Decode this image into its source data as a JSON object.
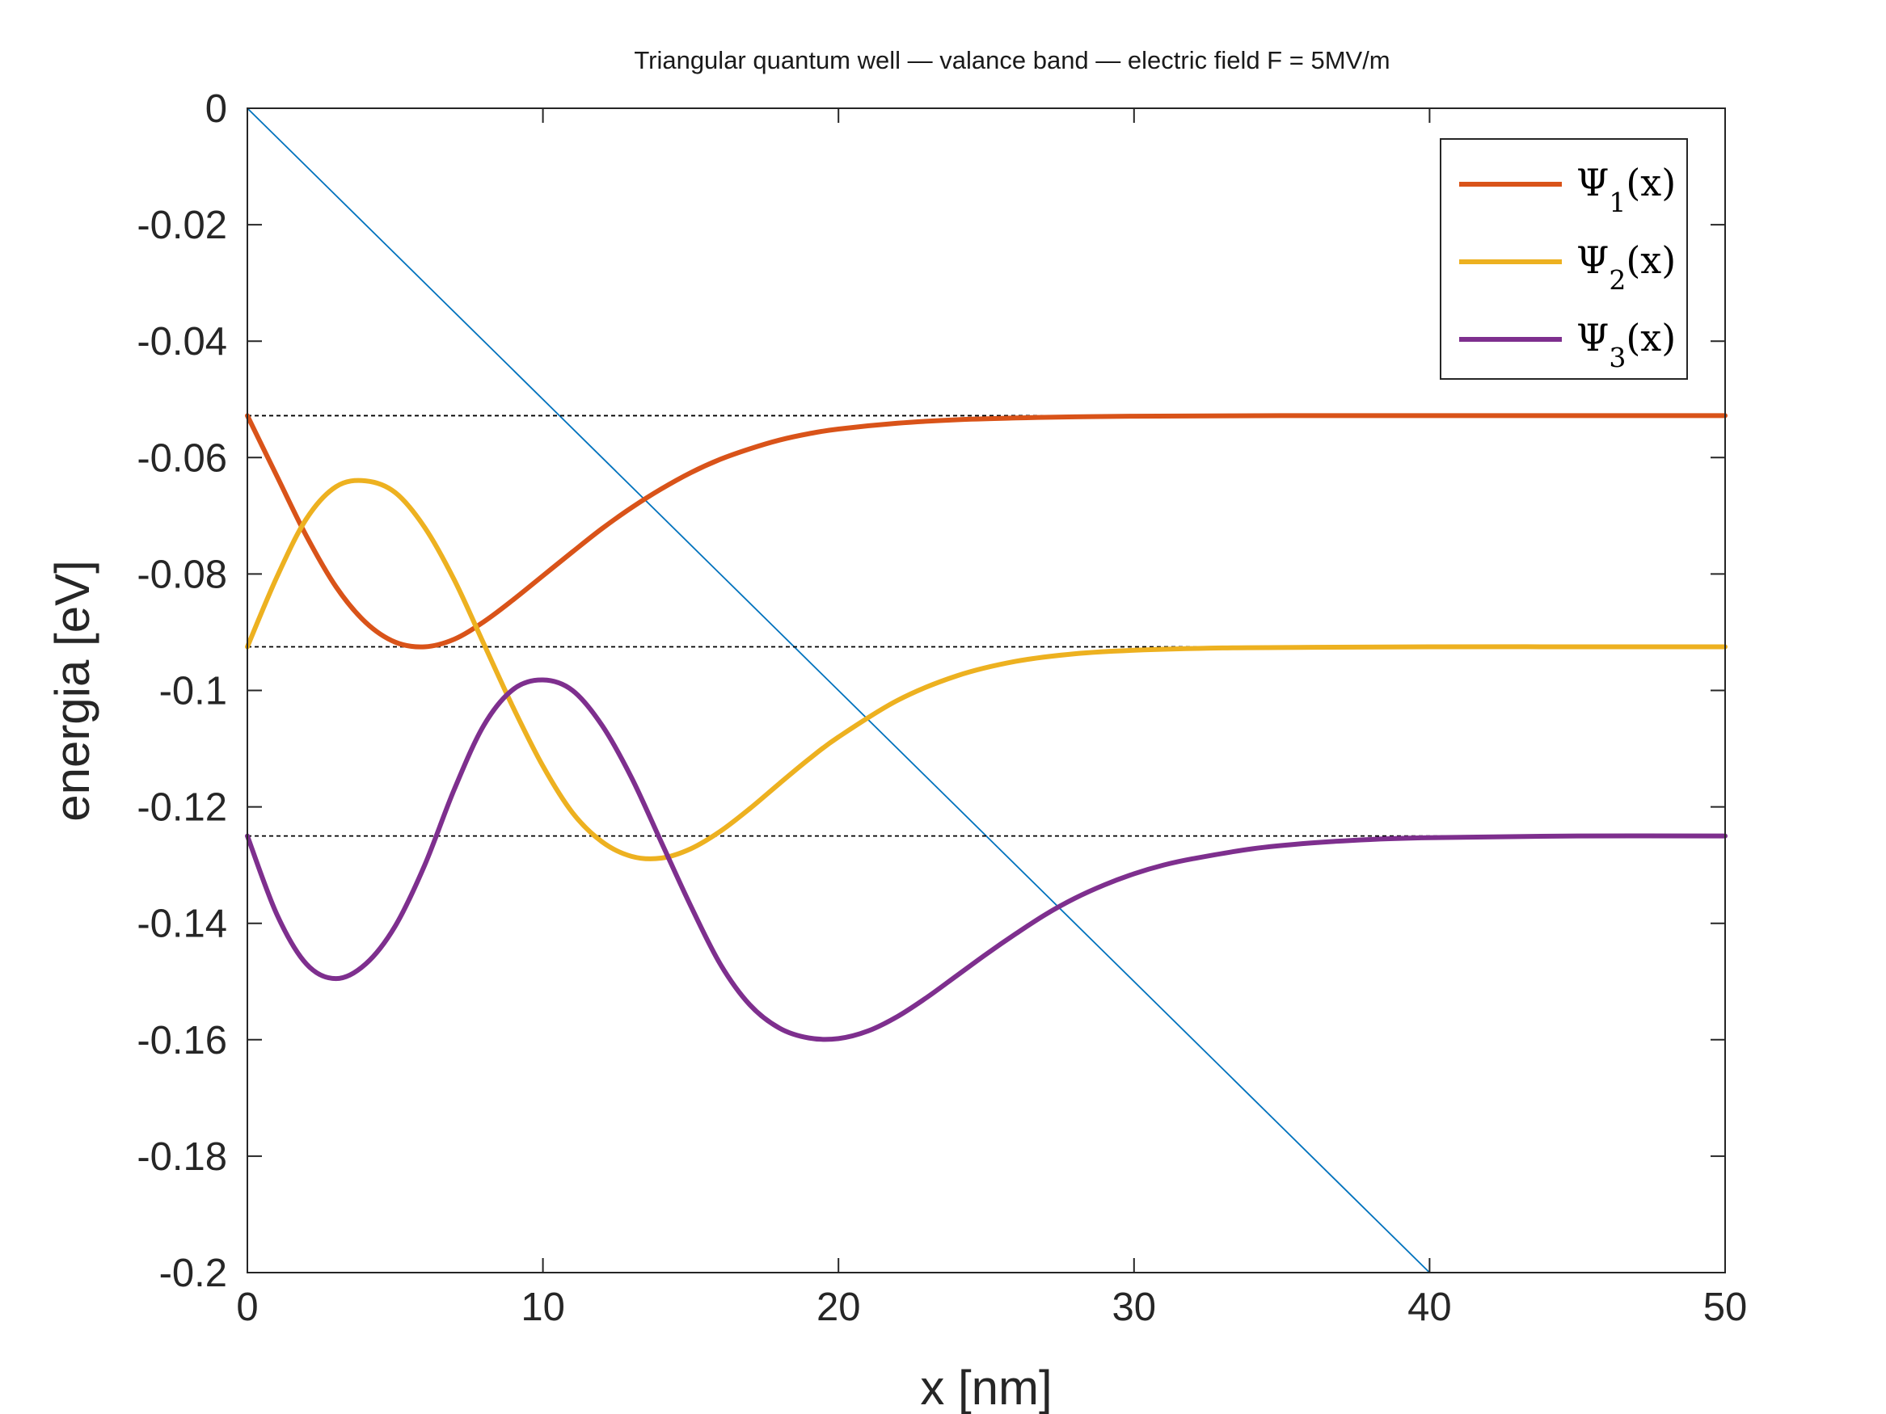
{
  "chart_data": {
    "type": "line",
    "title": "Triangular quantum well — valance band —  electric field F = 5MV/m",
    "xlabel": "x [nm]",
    "ylabel": "energia [eV]",
    "xlim": [
      0,
      50
    ],
    "ylim": [
      -0.2,
      0
    ],
    "x_ticks": [
      0,
      10,
      20,
      30,
      40,
      50
    ],
    "x_tick_labels": [
      "0",
      "10",
      "20",
      "30",
      "40",
      "50"
    ],
    "y_ticks": [
      0,
      -0.02,
      -0.04,
      -0.06,
      -0.08,
      -0.1,
      -0.12,
      -0.14,
      -0.16,
      -0.18,
      -0.2
    ],
    "y_tick_labels": [
      "0",
      "-0.02",
      "-0.04",
      "-0.06",
      "-0.08",
      "-0.1",
      "-0.12",
      "-0.14",
      "-0.16",
      "-0.18",
      "-0.2"
    ],
    "grid": false,
    "box": true,
    "legend_position": "top-right",
    "potential": {
      "color": "#0072BD",
      "x": [
        0,
        40
      ],
      "y": [
        0,
        -0.2
      ]
    },
    "energy_levels": {
      "color": "#000000",
      "values": [
        -0.0528,
        -0.0925,
        -0.125
      ]
    },
    "series": [
      {
        "name": "Ψ1(x)",
        "legend_symbol": "Ψ",
        "legend_subscript": "1",
        "legend_suffix": "(x)",
        "color": "#D95319",
        "x": [
          0,
          1,
          2,
          3,
          4,
          5,
          6,
          7,
          8,
          9,
          10,
          11,
          12,
          13,
          14,
          15,
          16,
          17,
          18,
          19,
          20,
          22,
          24,
          26,
          28,
          30,
          35,
          40,
          45,
          50
        ],
        "y": [
          -0.0528,
          -0.0632,
          -0.0735,
          -0.0822,
          -0.0883,
          -0.0917,
          -0.0925,
          -0.0912,
          -0.0882,
          -0.0844,
          -0.0803,
          -0.0762,
          -0.0722,
          -0.0686,
          -0.0654,
          -0.0626,
          -0.0603,
          -0.0585,
          -0.057,
          -0.0559,
          -0.0551,
          -0.0541,
          -0.0535,
          -0.0532,
          -0.053,
          -0.0529,
          -0.0528,
          -0.0528,
          -0.0528,
          -0.0528
        ]
      },
      {
        "name": "Ψ2(x)",
        "legend_symbol": "Ψ",
        "legend_subscript": "2",
        "legend_suffix": "(x)",
        "color": "#EDB120",
        "x": [
          0,
          1,
          2,
          3,
          4,
          5,
          6,
          7,
          8,
          9,
          10,
          11,
          12,
          13,
          14,
          15,
          16,
          17,
          18,
          19,
          20,
          22,
          24,
          26,
          28,
          30,
          33,
          36,
          40,
          45,
          50
        ],
        "y": [
          -0.0925,
          -0.0805,
          -0.0705,
          -0.065,
          -0.064,
          -0.066,
          -0.072,
          -0.081,
          -0.092,
          -0.103,
          -0.113,
          -0.121,
          -0.126,
          -0.1285,
          -0.1288,
          -0.1272,
          -0.1242,
          -0.1203,
          -0.116,
          -0.1118,
          -0.108,
          -0.1017,
          -0.0975,
          -0.095,
          -0.0937,
          -0.0931,
          -0.0927,
          -0.0926,
          -0.0925,
          -0.0925,
          -0.0925
        ]
      },
      {
        "name": "Ψ3(x)",
        "legend_symbol": "Ψ",
        "legend_subscript": "3",
        "legend_suffix": "(x)",
        "color": "#7E2F8E",
        "x": [
          0,
          1,
          2,
          3,
          4,
          5,
          6,
          7,
          8,
          9,
          10,
          11,
          12,
          13,
          14,
          15,
          16,
          17,
          18,
          19,
          20,
          21,
          22,
          23,
          24,
          25,
          26,
          27,
          28,
          29,
          30,
          31,
          32,
          34,
          36,
          38,
          40,
          45,
          50
        ],
        "y": [
          -0.125,
          -0.1385,
          -0.147,
          -0.1495,
          -0.147,
          -0.1405,
          -0.13,
          -0.117,
          -0.106,
          -0.0998,
          -0.0982,
          -0.1,
          -0.106,
          -0.115,
          -0.126,
          -0.137,
          -0.147,
          -0.154,
          -0.158,
          -0.1597,
          -0.1598,
          -0.1585,
          -0.156,
          -0.1527,
          -0.149,
          -0.1453,
          -0.1418,
          -0.1385,
          -0.1357,
          -0.1334,
          -0.1315,
          -0.13,
          -0.1289,
          -0.1272,
          -0.1262,
          -0.1256,
          -0.1253,
          -0.125,
          -0.125
        ]
      }
    ]
  }
}
